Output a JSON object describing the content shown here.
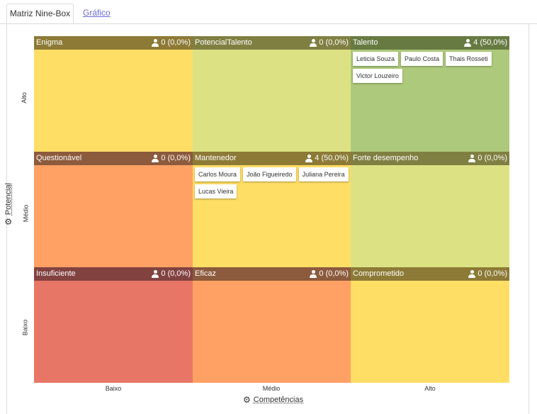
{
  "tabs": [
    {
      "label": "Matriz Nine-Box",
      "active": true
    },
    {
      "label": "Gráfico",
      "active": false
    }
  ],
  "y_axis": {
    "title": "Potencial",
    "levels": [
      "Alto",
      "Médio",
      "Baixo"
    ]
  },
  "x_axis": {
    "title": "Competências",
    "levels": [
      "Baixo",
      "Médio",
      "Alto"
    ]
  },
  "cells": [
    {
      "title": "Enigma",
      "count": "0 (0,0%)",
      "header_color": "#8c7a36",
      "bg": "#ffde66",
      "people": []
    },
    {
      "title": "PotencialTalento",
      "count": "0 (0,0%)",
      "header_color": "#807f42",
      "bg": "#dce283",
      "people": []
    },
    {
      "title": "Talento",
      "count": "4 (50,0%)",
      "header_color": "#677a42",
      "bg": "#adc97b",
      "people": [
        "Leticia Souza",
        "Paulo Costa",
        "Thais Rosseti",
        "Victor Louzeiro"
      ]
    },
    {
      "title": "Questionável",
      "count": "0 (0,0%)",
      "header_color": "#8c5a3c",
      "bg": "#ffa064",
      "people": []
    },
    {
      "title": "Mantenedor",
      "count": "4 (50,0%)",
      "header_color": "#8c7a36",
      "bg": "#ffde66",
      "people": [
        "Carlos Moura",
        "João Figueiredo",
        "Juliana Pereira",
        "Lucas Vieira"
      ]
    },
    {
      "title": "Forte desempenho",
      "count": "0 (0,0%)",
      "header_color": "#807f42",
      "bg": "#dce283",
      "people": []
    },
    {
      "title": "Insuficiente",
      "count": "0 (0,0%)",
      "header_color": "#824240",
      "bg": "#e87667",
      "people": []
    },
    {
      "title": "Eficaz",
      "count": "0 (0,0%)",
      "header_color": "#8c5a3c",
      "bg": "#ffa064",
      "people": []
    },
    {
      "title": "Comprometido",
      "count": "0 (0,0%)",
      "header_color": "#8c7a36",
      "bg": "#ffde66",
      "people": []
    }
  ]
}
